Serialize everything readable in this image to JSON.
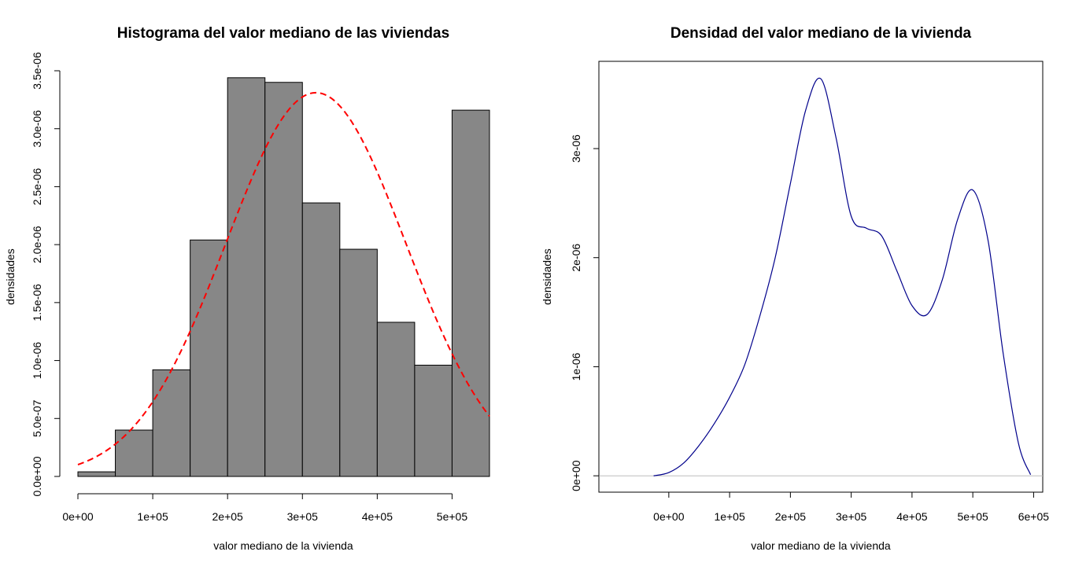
{
  "chart_data": [
    {
      "type": "bar",
      "title": "Histograma del valor mediano de las viviendas",
      "xlabel": "valor mediano de la vivienda",
      "ylabel": "densidades",
      "bar_color": "#878787",
      "curve_color": "#ff0000",
      "xlim": [
        0,
        550000
      ],
      "ylim": [
        0,
        3.5e-06
      ],
      "x_ticks": [
        0,
        100000,
        200000,
        300000,
        400000,
        500000
      ],
      "x_tick_labels": [
        "0e+00",
        "1e+05",
        "2e+05",
        "3e+05",
        "4e+05",
        "5e+05"
      ],
      "y_ticks": [
        0,
        5e-07,
        1e-06,
        1.5e-06,
        2e-06,
        2.5e-06,
        3e-06,
        3.5e-06
      ],
      "y_tick_labels": [
        "0.0e+00",
        "5.0e-07",
        "1.0e-06",
        "1.5e-06",
        "2.0e-06",
        "2.5e-06",
        "3.0e-06",
        "3.5e-06"
      ],
      "bins": [
        {
          "x0": 0,
          "x1": 50000,
          "density": 4e-08
        },
        {
          "x0": 50000,
          "x1": 100000,
          "density": 4e-07
        },
        {
          "x0": 100000,
          "x1": 150000,
          "density": 9.2e-07
        },
        {
          "x0": 150000,
          "x1": 200000,
          "density": 2.04e-06
        },
        {
          "x0": 200000,
          "x1": 250000,
          "density": 3.44e-06
        },
        {
          "x0": 250000,
          "x1": 300000,
          "density": 3.4e-06
        },
        {
          "x0": 300000,
          "x1": 350000,
          "density": 2.36e-06
        },
        {
          "x0": 350000,
          "x1": 400000,
          "density": 1.96e-06
        },
        {
          "x0": 400000,
          "x1": 450000,
          "density": 1.33e-06
        },
        {
          "x0": 450000,
          "x1": 500000,
          "density": 9.6e-07
        },
        {
          "x0": 500000,
          "x1": 550000,
          "density": 3.16e-06
        }
      ],
      "normal_curve": {
        "mean": 318000,
        "sd": 120500
      }
    },
    {
      "type": "line",
      "title": "Densidad del valor mediano de la vivienda",
      "xlabel": "valor mediano de la vivienda",
      "ylabel": "densidades",
      "line_color": "#00008b",
      "baseline_color": "#bebebe",
      "xlim": [
        -115000,
        615000
      ],
      "ylim": [
        -1.5e-07,
        3.8e-06
      ],
      "x_ticks": [
        0,
        100000,
        200000,
        300000,
        400000,
        500000,
        600000
      ],
      "x_tick_labels": [
        "0e+00",
        "1e+05",
        "2e+05",
        "3e+05",
        "4e+05",
        "5e+05",
        "6e+05"
      ],
      "y_ticks": [
        0,
        1e-06,
        2e-06,
        3e-06
      ],
      "y_tick_labels": [
        "0e+00",
        "1e-06",
        "2e-06",
        "3e-06"
      ],
      "x": [
        -25000,
        0,
        25000,
        50000,
        75000,
        100000,
        125000,
        150000,
        175000,
        200000,
        225000,
        250000,
        275000,
        300000,
        325000,
        350000,
        375000,
        400000,
        425000,
        450000,
        475000,
        500000,
        525000,
        550000,
        575000,
        595000
      ],
      "y": [
        0.0,
        3e-08,
        1.2e-07,
        2.8e-07,
        4.8e-07,
        7.2e-07,
        1.02e-06,
        1.47e-06,
        2e-06,
        2.68e-06,
        3.35e-06,
        3.64e-06,
        3.1e-06,
        2.38e-06,
        2.27e-06,
        2.2e-06,
        1.88e-06,
        1.56e-06,
        1.48e-06,
        1.8e-06,
        2.35e-06,
        2.62e-06,
        2.16e-06,
        1.12e-06,
        3e-07,
        1e-08
      ]
    }
  ]
}
